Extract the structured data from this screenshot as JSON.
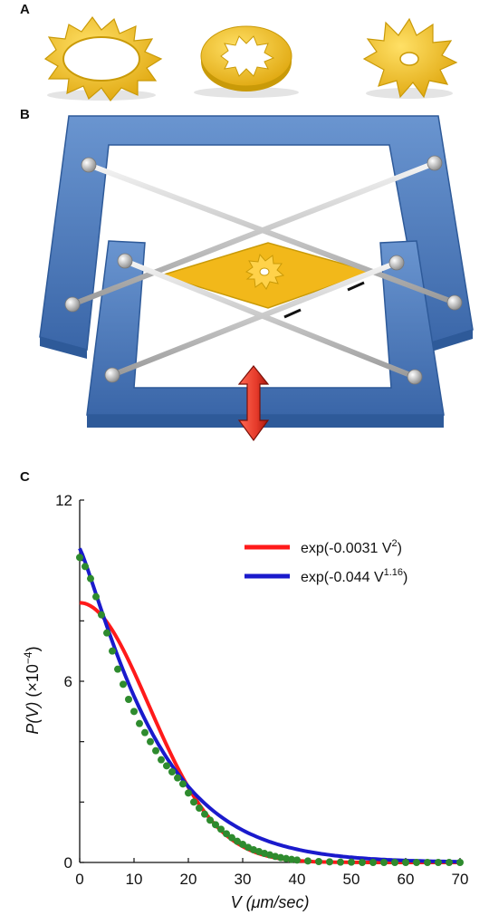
{
  "panels": {
    "a": "A",
    "b": "B",
    "c": "C"
  },
  "colors": {
    "gear_gold": "#f2c01c",
    "gear_shade": "#c99a08",
    "frame_blue": "#4a77b8",
    "frame_dark": "#2e5a99",
    "arrow_red": "#e53a2a",
    "series_red": "#ff1a1a",
    "series_blue": "#1a1acc",
    "series_green": "#2e8b2e"
  },
  "icons": [
    "outer-gear-ring-icon",
    "inner-gear-ring-icon",
    "solid-gear-icon",
    "micro-gear-icon",
    "double-arrow-icon"
  ],
  "chart_data": {
    "type": "line",
    "xlabel": "V (μm/sec)",
    "ylabel": "P(V)  (×10⁻⁴)",
    "xlim": [
      0,
      70
    ],
    "ylim": [
      0,
      12
    ],
    "x_ticks": [
      "0",
      "10",
      "20",
      "30",
      "40",
      "50",
      "60",
      "70"
    ],
    "y_ticks": [
      "0",
      "6",
      "12"
    ],
    "legend_position": "top-right",
    "series": [
      {
        "name": "exp(-0.0031 V²)",
        "label_base": "exp(-0.0031 V",
        "label_exp": "2",
        "label_end": ")",
        "kind": "line",
        "color": "#ff1a1a",
        "amplitude": 8.6,
        "coef": 0.0031,
        "power": 2
      },
      {
        "name": "exp(-0.044 V¹·¹⁶)",
        "label_base": "exp(-0.044 V",
        "label_exp": "1.16",
        "label_end": ")",
        "kind": "line",
        "color": "#1a1acc",
        "amplitude": 10.4,
        "coef": 0.044,
        "power": 1.16
      },
      {
        "name": "data",
        "kind": "scatter",
        "color": "#2e8b2e",
        "x": [
          0,
          1,
          2,
          3,
          4,
          5,
          6,
          7,
          8,
          9,
          10,
          11,
          12,
          13,
          14,
          15,
          16,
          17,
          18,
          19,
          20,
          21,
          22,
          23,
          24,
          25,
          26,
          27,
          28,
          29,
          30,
          31,
          32,
          33,
          34,
          35,
          36,
          37,
          38,
          39,
          40,
          42,
          44,
          46,
          48,
          50,
          52,
          54,
          56,
          58,
          60,
          62,
          64,
          66,
          68,
          70
        ],
        "y": [
          10.1,
          9.8,
          9.4,
          8.8,
          8.2,
          7.6,
          7.0,
          6.4,
          5.9,
          5.4,
          5.0,
          4.6,
          4.3,
          4.0,
          3.7,
          3.4,
          3.2,
          3.0,
          2.8,
          2.6,
          2.3,
          2.0,
          1.8,
          1.6,
          1.4,
          1.25,
          1.1,
          0.95,
          0.82,
          0.7,
          0.6,
          0.5,
          0.42,
          0.36,
          0.3,
          0.25,
          0.2,
          0.16,
          0.13,
          0.1,
          0.08,
          0.05,
          0.03,
          0.02,
          0.01,
          0.01,
          0.0,
          0.0,
          0.0,
          0.0,
          0.0,
          0.0,
          0.0,
          0.0,
          0.0,
          0.0
        ]
      }
    ]
  }
}
